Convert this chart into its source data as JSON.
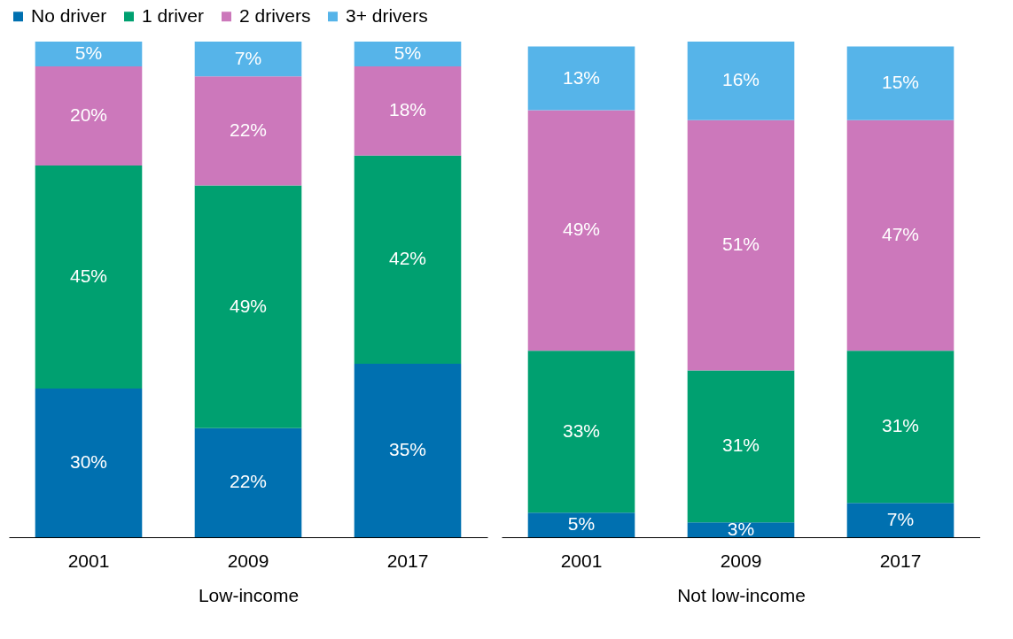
{
  "chart_data": [
    {
      "type": "bar",
      "stacked": true,
      "legend": "top",
      "xlabel": "Low-income",
      "categories": [
        "2001",
        "2009",
        "2017"
      ],
      "series": [
        {
          "name": "No driver",
          "color": "#0070b0",
          "values": [
            30,
            22,
            35
          ],
          "value_labels": [
            "30%",
            "22%",
            "35%"
          ]
        },
        {
          "name": "1 driver",
          "color": "#00a070",
          "values": [
            45,
            49,
            42
          ],
          "value_labels": [
            "45%",
            "49%",
            "42%"
          ]
        },
        {
          "name": "2 drivers",
          "color": "#cc78bb",
          "values": [
            20,
            22,
            18
          ],
          "value_labels": [
            "20%",
            "22%",
            "18%"
          ]
        },
        {
          "name": "3+ drivers",
          "color": "#56b4e9",
          "values": [
            5,
            7,
            5
          ],
          "value_labels": [
            "5%",
            "7%",
            "5%"
          ]
        }
      ]
    },
    {
      "type": "bar",
      "stacked": true,
      "xlabel": "Not low-income",
      "categories": [
        "2001",
        "2009",
        "2017"
      ],
      "series": [
        {
          "name": "No driver",
          "color": "#0070b0",
          "values": [
            5,
            3,
            7
          ],
          "value_labels": [
            "5%",
            "3%",
            "7%"
          ]
        },
        {
          "name": "1 driver",
          "color": "#00a070",
          "values": [
            33,
            31,
            31
          ],
          "value_labels": [
            "33%",
            "31%",
            "31%"
          ]
        },
        {
          "name": "2 drivers",
          "color": "#cc78bb",
          "values": [
            49,
            51,
            47
          ],
          "value_labels": [
            "49%",
            "51%",
            "47%"
          ]
        },
        {
          "name": "3+ drivers",
          "color": "#56b4e9",
          "values": [
            13,
            16,
            15
          ],
          "value_labels": [
            "13%",
            "16%",
            "15%"
          ]
        }
      ]
    }
  ]
}
